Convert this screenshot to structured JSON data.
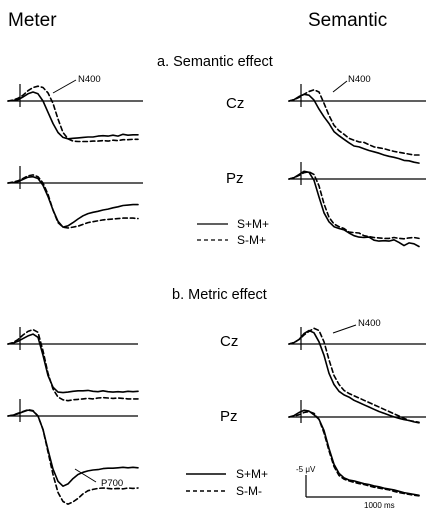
{
  "headers": {
    "left": "Meter",
    "right": "Semantic"
  },
  "sections": {
    "a": "a. Semantic effect",
    "b": "b. Metric effect"
  },
  "channels": {
    "cz": "Cz",
    "pz": "Pz"
  },
  "legend_a": {
    "solid": "S+M+",
    "dashed": "S-M+"
  },
  "legend_b": {
    "solid": "S+M+",
    "dashed": "S-M-"
  },
  "annotations": {
    "n400": "N400",
    "p700": "P700"
  },
  "scale": {
    "amplitude": "-5 μV",
    "time": "1000 ms"
  },
  "chart_data": [
    {
      "type": "line",
      "panel": "a-meter-cz",
      "series": [
        {
          "style": "solid",
          "x": [
            0,
            0.05,
            0.1,
            0.15,
            0.2,
            0.25,
            0.3,
            0.35,
            0.4,
            0.45,
            0.5,
            0.55,
            0.6,
            0.65,
            0.7,
            0.75,
            0.8,
            0.85,
            0.9,
            0.95,
            1,
            1.05,
            1.1,
            1.15,
            1.2,
            1.25,
            1.3
          ],
          "y": [
            0,
            0.1,
            0.3,
            0.9,
            1.6,
            2,
            1.6,
            0,
            -2.5,
            -5,
            -7,
            -8.1,
            -8.4,
            -8.3,
            -8.2,
            -8.1,
            -8,
            -8,
            -7.8,
            -7.7,
            -7.8,
            -7.6,
            -7.8,
            -7.4,
            -7.6,
            -7.5,
            -7.5
          ]
        },
        {
          "style": "dashed",
          "x": [
            0,
            0.05,
            0.1,
            0.15,
            0.2,
            0.25,
            0.3,
            0.35,
            0.4,
            0.45,
            0.5,
            0.55,
            0.6,
            0.65,
            0.7,
            0.75,
            0.8,
            0.85,
            0.9,
            0.95,
            1,
            1.05,
            1.1,
            1.15,
            1.2,
            1.25,
            1.3
          ],
          "y": [
            0,
            0.2,
            0.6,
            1.3,
            2.3,
            3,
            3.3,
            3,
            1.8,
            -0.5,
            -4,
            -7,
            -8.4,
            -8.9,
            -9,
            -9,
            -9,
            -8.9,
            -8.9,
            -8.8,
            -8.9,
            -8.7,
            -8.8,
            -8.6,
            -8.6,
            -8.5,
            -8.5
          ]
        }
      ]
    },
    {
      "type": "line",
      "panel": "a-meter-pz",
      "series": [
        {
          "style": "solid",
          "x": [
            0,
            0.05,
            0.1,
            0.15,
            0.2,
            0.25,
            0.3,
            0.35,
            0.4,
            0.45,
            0.5,
            0.55,
            0.6,
            0.65,
            0.7,
            0.75,
            0.8,
            0.85,
            0.9,
            0.95,
            1,
            1.05,
            1.1,
            1.15,
            1.2,
            1.25,
            1.3
          ],
          "y": [
            0,
            0.1,
            0.3,
            0.8,
            1.3,
            1.4,
            1,
            -0.5,
            -3,
            -6,
            -8.5,
            -9.8,
            -9.5,
            -8.8,
            -8,
            -7.3,
            -6.8,
            -6.5,
            -6.3,
            -6,
            -5.8,
            -5.5,
            -5.3,
            -5,
            -4.9,
            -4.8,
            -4.8
          ]
        },
        {
          "style": "dashed",
          "x": [
            0,
            0.05,
            0.1,
            0.15,
            0.2,
            0.25,
            0.3,
            0.35,
            0.4,
            0.45,
            0.5,
            0.55,
            0.6,
            0.65,
            0.7,
            0.75,
            0.8,
            0.85,
            0.9,
            0.95,
            1,
            1.05,
            1.1,
            1.15,
            1.2,
            1.25,
            1.3
          ],
          "y": [
            0,
            0.2,
            0.5,
            1,
            1.6,
            1.8,
            1.4,
            0,
            -2.5,
            -6,
            -8.8,
            -9.8,
            -10,
            -9.8,
            -9.6,
            -9.2,
            -8.8,
            -8.6,
            -8.4,
            -8.2,
            -8.1,
            -8,
            -7.9,
            -7.8,
            -7.8,
            -7.8,
            -7.9
          ]
        }
      ]
    },
    {
      "type": "line",
      "panel": "a-semantic-cz",
      "series": [
        {
          "style": "solid",
          "x": [
            0,
            0.05,
            0.1,
            0.15,
            0.2,
            0.25,
            0.3,
            0.35,
            0.4,
            0.45,
            0.5,
            0.55,
            0.6,
            0.65,
            0.7,
            0.75,
            0.8,
            0.85,
            0.9,
            0.95,
            1,
            1.05,
            1.1,
            1.15,
            1.2,
            1.25,
            1.3
          ],
          "y": [
            0,
            0.3,
            1,
            1.5,
            1.3,
            0.2,
            -1.8,
            -3.5,
            -5,
            -6.8,
            -7.7,
            -8.5,
            -9.3,
            -10,
            -10.2,
            -10.6,
            -11,
            -11.3,
            -11.6,
            -12,
            -12.3,
            -12.5,
            -12.8,
            -13.2,
            -13.3,
            -13.6,
            -13.8
          ]
        },
        {
          "style": "dashed",
          "x": [
            0,
            0.05,
            0.1,
            0.15,
            0.2,
            0.25,
            0.3,
            0.35,
            0.4,
            0.45,
            0.5,
            0.55,
            0.6,
            0.65,
            0.7,
            0.75,
            0.8,
            0.85,
            0.9,
            0.95,
            1,
            1.05,
            1.1,
            1.15,
            1.2,
            1.25,
            1.3
          ],
          "y": [
            0,
            0.3,
            0.8,
            1.5,
            2.1,
            2.5,
            2,
            -0.5,
            -3.2,
            -5.4,
            -6.6,
            -7.4,
            -8.3,
            -8.7,
            -9.1,
            -9.2,
            -9.7,
            -10.2,
            -10.4,
            -10.6,
            -10.9,
            -11.2,
            -11.4,
            -11.6,
            -11.8,
            -12,
            -12
          ]
        }
      ]
    },
    {
      "type": "line",
      "panel": "a-semantic-pz",
      "series": [
        {
          "style": "solid",
          "x": [
            0,
            0.05,
            0.1,
            0.15,
            0.2,
            0.25,
            0.3,
            0.35,
            0.4,
            0.45,
            0.5,
            0.55,
            0.6,
            0.65,
            0.7,
            0.75,
            0.8,
            0.85,
            0.9,
            0.95,
            1,
            1.05,
            1.1,
            1.15,
            1.2,
            1.25,
            1.3
          ],
          "y": [
            0,
            0.3,
            1,
            1.7,
            1.5,
            -0.3,
            -4,
            -7.5,
            -9.5,
            -10.6,
            -11,
            -11.3,
            -12,
            -12.6,
            -12.9,
            -13,
            -12.9,
            -13.6,
            -13.8,
            -13.7,
            -13.8,
            -13.5,
            -14.1,
            -14.8,
            -14.2,
            -14.4,
            -15
          ]
        },
        {
          "style": "dashed",
          "x": [
            0,
            0.05,
            0.1,
            0.15,
            0.2,
            0.25,
            0.3,
            0.35,
            0.4,
            0.45,
            0.5,
            0.55,
            0.6,
            0.65,
            0.7,
            0.75,
            0.8,
            0.85,
            0.9,
            0.95,
            1,
            1.05,
            1.1,
            1.15,
            1.2,
            1.25,
            1.3
          ],
          "y": [
            0,
            0.3,
            0.8,
            1.4,
            1.6,
            1,
            -1.5,
            -5.5,
            -8.5,
            -10,
            -10.6,
            -11,
            -11.8,
            -11.9,
            -12,
            -12.6,
            -12.8,
            -13,
            -13.1,
            -13.2,
            -13.2,
            -13,
            -13.2,
            -13.3,
            -13.1,
            -13,
            -13.2
          ]
        }
      ]
    },
    {
      "type": "line",
      "panel": "b-meter-cz",
      "series": [
        {
          "style": "solid",
          "x": [
            0,
            0.05,
            0.1,
            0.15,
            0.2,
            0.25,
            0.3,
            0.35,
            0.4,
            0.45,
            0.5,
            0.55,
            0.6,
            0.65,
            0.7,
            0.75,
            0.8,
            0.85,
            0.9,
            0.95,
            1,
            1.05,
            1.1,
            1.15,
            1.2,
            1.25,
            1.3
          ],
          "y": [
            0,
            0.2,
            0.6,
            1.2,
            1.8,
            2.2,
            1.5,
            -2.5,
            -7,
            -9.6,
            -10.7,
            -10.8,
            -10.7,
            -10.5,
            -10.4,
            -10.4,
            -10.3,
            -10.5,
            -10.6,
            -10.4,
            -10.6,
            -10.7,
            -10.6,
            -10.7,
            -10.5,
            -10.6,
            -10.5
          ]
        },
        {
          "style": "dashed",
          "x": [
            0,
            0.05,
            0.1,
            0.15,
            0.2,
            0.25,
            0.3,
            0.35,
            0.4,
            0.45,
            0.5,
            0.55,
            0.6,
            0.65,
            0.7,
            0.75,
            0.8,
            0.85,
            0.9,
            0.95,
            1,
            1.05,
            1.1,
            1.15,
            1.2,
            1.25,
            1.3
          ],
          "y": [
            0,
            0.3,
            1,
            2,
            2.8,
            3.2,
            2.6,
            -1.5,
            -6.5,
            -10,
            -11.8,
            -12.4,
            -12.6,
            -12.4,
            -12.3,
            -12.2,
            -12.1,
            -12.2,
            -12,
            -11.9,
            -12,
            -12.1,
            -12,
            -12.1,
            -12.2,
            -12.2,
            -12.2
          ]
        }
      ]
    },
    {
      "type": "line",
      "panel": "b-meter-pz",
      "series": [
        {
          "style": "solid",
          "x": [
            0,
            0.05,
            0.1,
            0.15,
            0.2,
            0.25,
            0.3,
            0.35,
            0.4,
            0.45,
            0.5,
            0.55,
            0.6,
            0.65,
            0.7,
            0.75,
            0.8,
            0.85,
            0.9,
            0.95,
            1,
            1.05,
            1.1,
            1.15,
            1.2,
            1.25,
            1.3
          ],
          "y": [
            0,
            0.2,
            0.5,
            0.9,
            1.3,
            1.1,
            0,
            -3,
            -7.5,
            -11.8,
            -14.5,
            -15.6,
            -15.1,
            -13.9,
            -13,
            -12.5,
            -12.2,
            -12,
            -11.9,
            -11.7,
            -11.6,
            -11.6,
            -11.5,
            -11.4,
            -11.5,
            -11.4,
            -11.5
          ]
        },
        {
          "style": "dashed",
          "x": [
            0,
            0.05,
            0.1,
            0.15,
            0.2,
            0.25,
            0.3,
            0.35,
            0.4,
            0.45,
            0.5,
            0.55,
            0.6,
            0.65,
            0.7,
            0.75,
            0.8,
            0.85,
            0.9,
            0.95,
            1,
            1.05,
            1.1,
            1.15,
            1.2,
            1.25,
            1.3
          ],
          "y": [
            0,
            0.2,
            0.6,
            1,
            1.4,
            1.2,
            0,
            -3,
            -8,
            -13,
            -17,
            -19,
            -19.6,
            -19.1,
            -18.3,
            -17.3,
            -16.6,
            -16.3,
            -16.1,
            -16,
            -16.1,
            -16.2,
            -16.1,
            -16.2,
            -16,
            -16.1,
            -16
          ]
        }
      ]
    },
    {
      "type": "line",
      "panel": "b-semantic-cz",
      "series": [
        {
          "style": "solid",
          "x": [
            0,
            0.05,
            0.1,
            0.15,
            0.2,
            0.25,
            0.3,
            0.35,
            0.4,
            0.45,
            0.5,
            0.55,
            0.6,
            0.65,
            0.7,
            0.75,
            0.8,
            0.85,
            0.9,
            0.95,
            1,
            1.05,
            1.1,
            1.15,
            1.2,
            1.25,
            1.3
          ],
          "y": [
            0,
            0.3,
            1,
            2.3,
            3,
            2.5,
            0.5,
            -2.5,
            -6.5,
            -9,
            -10.5,
            -11.3,
            -11.8,
            -12.5,
            -13,
            -13.5,
            -14,
            -14.5,
            -15,
            -15.4,
            -15.8,
            -16.2,
            -16.5,
            -16.8,
            -17,
            -17.3,
            -17.5
          ]
        },
        {
          "style": "dashed",
          "x": [
            0,
            0.05,
            0.1,
            0.15,
            0.2,
            0.25,
            0.3,
            0.35,
            0.4,
            0.45,
            0.5,
            0.55,
            0.6,
            0.65,
            0.7,
            0.75,
            0.8,
            0.85,
            0.9,
            0.95,
            1,
            1.05,
            1.1,
            1.15,
            1.2,
            1.25,
            1.3
          ],
          "y": [
            0,
            0.3,
            1,
            2,
            2.8,
            3.5,
            3,
            0.5,
            -3.5,
            -7,
            -9,
            -10.3,
            -11,
            -11.5,
            -12,
            -12.5,
            -13,
            -13.5,
            -14,
            -14.5,
            -15,
            -15.5,
            -16,
            -16.5,
            -17,
            -17.2,
            -17.4
          ]
        }
      ]
    },
    {
      "type": "line",
      "panel": "b-semantic-pz",
      "series": [
        {
          "style": "solid",
          "x": [
            0,
            0.05,
            0.1,
            0.15,
            0.2,
            0.25,
            0.3,
            0.35,
            0.4,
            0.45,
            0.5,
            0.55,
            0.6,
            0.65,
            0.7,
            0.75,
            0.8,
            0.85,
            0.9,
            0.95,
            1,
            1.05,
            1.1,
            1.15,
            1.2,
            1.25,
            1.3
          ],
          "y": [
            0,
            0.3,
            1,
            1.5,
            1.3,
            0.5,
            -0.5,
            -3,
            -7,
            -10.5,
            -12.5,
            -13.5,
            -14,
            -14.2,
            -14.5,
            -14.8,
            -15,
            -15.3,
            -15.5,
            -15.8,
            -16,
            -16.2,
            -16.5,
            -16.8,
            -17,
            -17.2,
            -17.4
          ]
        },
        {
          "style": "dashed",
          "x": [
            0,
            0.05,
            0.1,
            0.15,
            0.2,
            0.25,
            0.3,
            0.35,
            0.4,
            0.45,
            0.5,
            0.55,
            0.6,
            0.65,
            0.7,
            0.75,
            0.8,
            0.85,
            0.9,
            0.95,
            1,
            1.05,
            1.1,
            1.15,
            1.2,
            1.25,
            1.3
          ],
          "y": [
            0,
            0.2,
            0.5,
            1,
            1.2,
            0.8,
            -0.5,
            -3.5,
            -7.5,
            -11,
            -13,
            -13.8,
            -14.2,
            -14.5,
            -14.8,
            -15,
            -15.3,
            -15.6,
            -15.8,
            -16,
            -16.2,
            -16.5,
            -16.8,
            -17,
            -17.2,
            -17.4,
            -17.5
          ]
        }
      ]
    }
  ]
}
